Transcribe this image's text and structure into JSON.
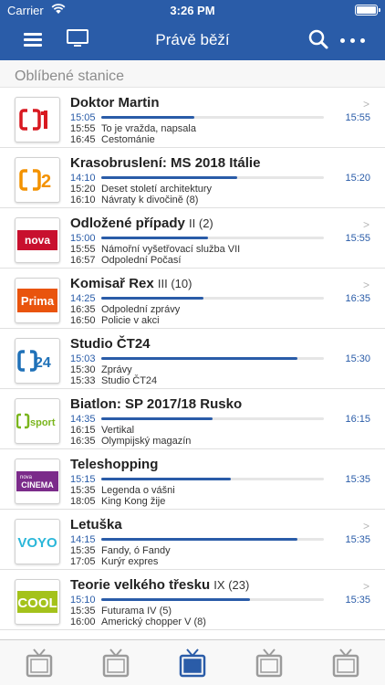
{
  "status": {
    "carrier": "Carrier",
    "time": "3:26 PM"
  },
  "header": {
    "title": "Právě běží"
  },
  "section": {
    "label": "Oblíbené stanice"
  },
  "colors": {
    "accent": "#2a5ca8",
    "tab_inactive": "#9b9b9b"
  },
  "channels": [
    {
      "logo": "ct1",
      "title": "Doktor Martin",
      "episode": "",
      "progress": 0.42,
      "end_time": "15:55",
      "has_chevron": true,
      "schedule": [
        {
          "time": "15:05",
          "name": ""
        },
        {
          "time": "15:55",
          "name": "To je vražda, napsala"
        },
        {
          "time": "16:45",
          "name": "Cestománie"
        }
      ]
    },
    {
      "logo": "ct2",
      "title": "Krasobruslení: MS 2018 Itálie",
      "episode": "",
      "progress": 0.61,
      "end_time": "15:20",
      "has_chevron": false,
      "schedule": [
        {
          "time": "14:10",
          "name": ""
        },
        {
          "time": "15:20",
          "name": "Deset století architektury"
        },
        {
          "time": "16:10",
          "name": "Návraty k divočině (8)"
        }
      ]
    },
    {
      "logo": "nova",
      "title": "Odložené případy",
      "episode": "II (2)",
      "progress": 0.48,
      "end_time": "15:55",
      "has_chevron": true,
      "schedule": [
        {
          "time": "15:00",
          "name": ""
        },
        {
          "time": "15:55",
          "name": "Námořní vyšetřovací služba VII"
        },
        {
          "time": "16:57",
          "name": "Odpolední Počasí"
        }
      ]
    },
    {
      "logo": "prima",
      "title": "Komisař Rex",
      "episode": "III (10)",
      "progress": 0.46,
      "end_time": "16:35",
      "has_chevron": true,
      "schedule": [
        {
          "time": "14:25",
          "name": ""
        },
        {
          "time": "16:35",
          "name": "Odpolední zprávy"
        },
        {
          "time": "16:50",
          "name": "Policie v akci"
        }
      ]
    },
    {
      "logo": "ct24",
      "title": "Studio ČT24",
      "episode": "",
      "progress": 0.88,
      "end_time": "15:30",
      "has_chevron": false,
      "schedule": [
        {
          "time": "15:03",
          "name": ""
        },
        {
          "time": "15:30",
          "name": "Zprávy"
        },
        {
          "time": "15:33",
          "name": "Studio ČT24"
        }
      ]
    },
    {
      "logo": "ctsport",
      "title": "Biatlon: SP 2017/18 Rusko",
      "episode": "",
      "progress": 0.5,
      "end_time": "16:15",
      "has_chevron": false,
      "schedule": [
        {
          "time": "14:35",
          "name": ""
        },
        {
          "time": "16:15",
          "name": "Vertikal"
        },
        {
          "time": "16:35",
          "name": "Olympijský magazín"
        }
      ]
    },
    {
      "logo": "novacinema",
      "title": "Teleshopping",
      "episode": "",
      "progress": 0.58,
      "end_time": "15:35",
      "has_chevron": false,
      "schedule": [
        {
          "time": "15:15",
          "name": ""
        },
        {
          "time": "15:35",
          "name": "Legenda o vášni"
        },
        {
          "time": "18:05",
          "name": "King Kong žije"
        }
      ]
    },
    {
      "logo": "voyo",
      "title": "Letuška",
      "episode": "",
      "progress": 0.88,
      "end_time": "15:35",
      "has_chevron": true,
      "schedule": [
        {
          "time": "14:15",
          "name": ""
        },
        {
          "time": "15:35",
          "name": "Fandy, ó Fandy"
        },
        {
          "time": "17:05",
          "name": "Kurýr expres"
        }
      ]
    },
    {
      "logo": "prima_cool",
      "title": "Teorie velkého třesku",
      "episode": "IX (23)",
      "progress": 0.67,
      "end_time": "15:35",
      "has_chevron": true,
      "schedule": [
        {
          "time": "15:10",
          "name": ""
        },
        {
          "time": "15:35",
          "name": "Futurama IV (5)"
        },
        {
          "time": "16:00",
          "name": "Americký chopper V (8)"
        }
      ]
    }
  ],
  "tabs": [
    {
      "icon": "tv-icon",
      "active": false
    },
    {
      "icon": "tv-icon",
      "active": false
    },
    {
      "icon": "tv-icon",
      "active": true
    },
    {
      "icon": "tv-icon",
      "active": false
    },
    {
      "icon": "tv-icon",
      "active": false
    }
  ]
}
